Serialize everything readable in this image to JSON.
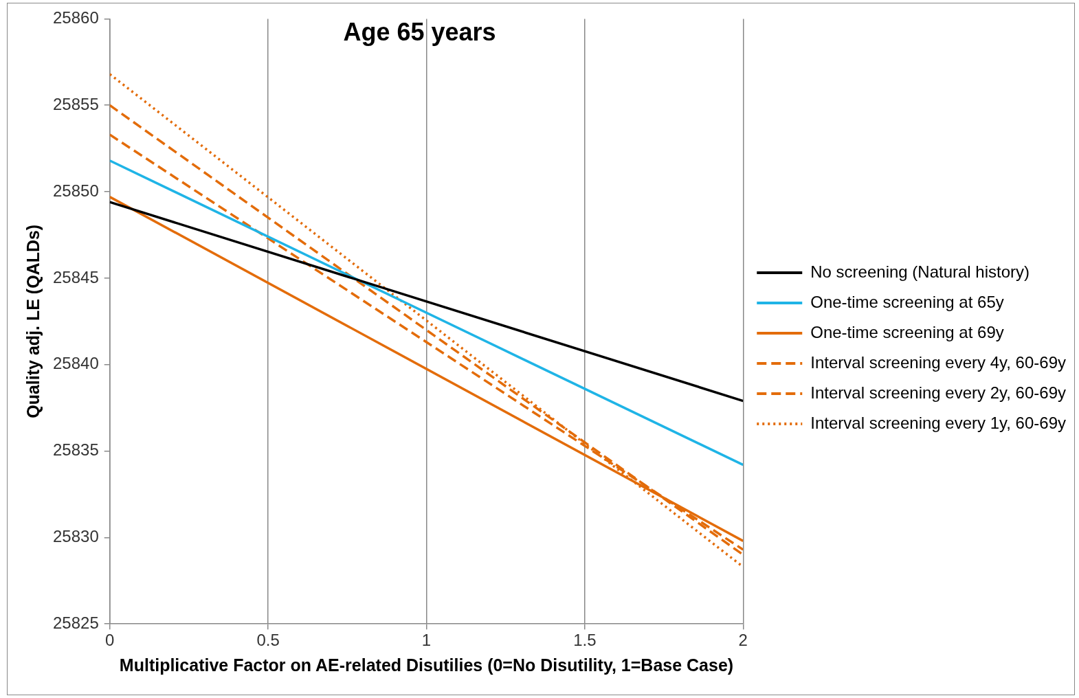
{
  "chart_data": {
    "type": "line",
    "title": "Age 65 years",
    "xlabel": "Multiplicative Factor on AE-related Disutilies (0=No Disutility, 1=Base Case)",
    "ylabel": "Quality adj. LE (QALDs)",
    "x": [
      0,
      2
    ],
    "series": [
      {
        "name": "No screening (Natural history)",
        "color": "#000000",
        "values": [
          25849.4,
          25837.9
        ],
        "line_style": "solid"
      },
      {
        "name": "One-time screening at 65y",
        "color": "#1fb4e6",
        "values": [
          25851.8,
          25834.2
        ],
        "line_style": "solid"
      },
      {
        "name": "One-time screening at 69y",
        "color": "#e36c0a",
        "values": [
          25849.7,
          25829.8
        ],
        "line_style": "solid"
      },
      {
        "name": "Interval screening every 4y, 60-69y",
        "color": "#e36c0a",
        "values": [
          25853.3,
          25829.3
        ],
        "line_style": "dashed"
      },
      {
        "name": "Interval screening every 2y, 60-69y",
        "color": "#e36c0a",
        "values": [
          25855.0,
          25829.0
        ],
        "line_style": "dashed"
      },
      {
        "name": "Interval screening every 1y, 60-69y",
        "color": "#e36c0a",
        "values": [
          25856.8,
          25828.3
        ],
        "line_style": "dotted"
      }
    ],
    "xlim": [
      0,
      2
    ],
    "xticks": [
      0,
      0.5,
      1,
      1.5,
      2
    ],
    "ylim": [
      25825,
      25860
    ],
    "yticks": [
      25825,
      25830,
      25835,
      25840,
      25845,
      25850,
      25855,
      25860
    ],
    "grid": "x",
    "legend": "right",
    "marker": "none"
  }
}
